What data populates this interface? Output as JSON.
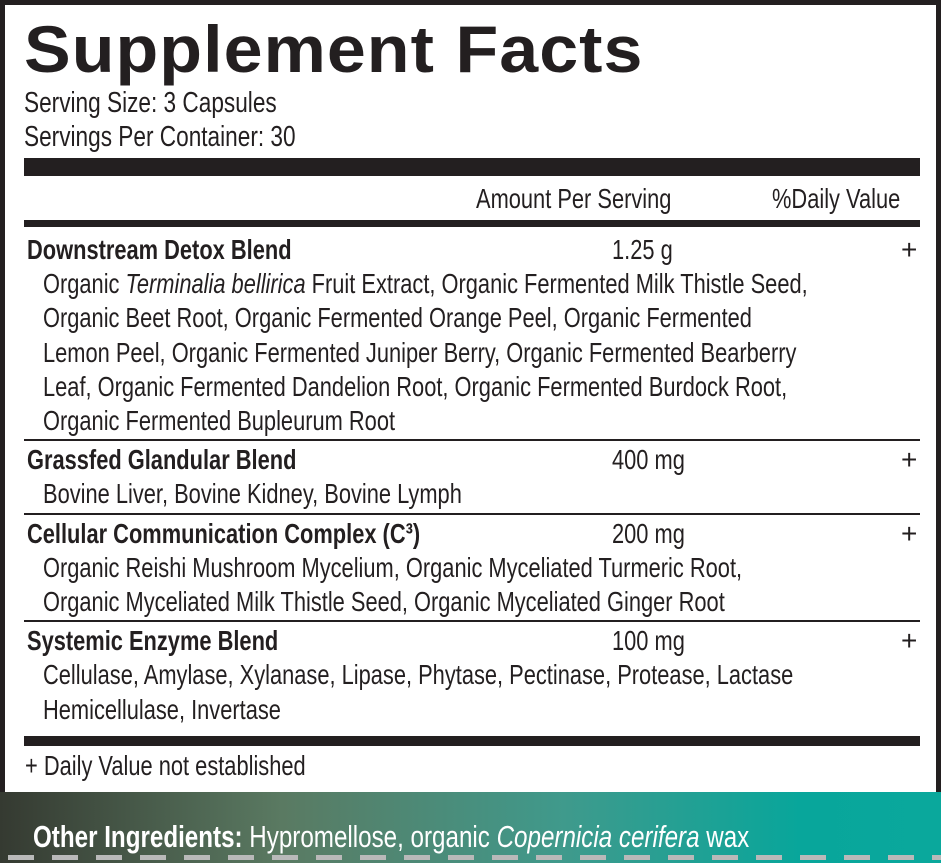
{
  "title": "Supplement Facts",
  "serving_size": "Serving Size: 3 Capsules",
  "servings_per_container": "Servings Per Container: 30",
  "header": {
    "amount": "Amount Per Serving",
    "dv": "%Daily Value"
  },
  "rows": [
    {
      "name": "Downstream Detox Blend",
      "amount": "1.25 g",
      "dv": "+",
      "lines": [
        [
          {
            "t": "Organic "
          },
          {
            "t": "Terminalia bellirica",
            "i": true
          },
          {
            "t": " Fruit Extract, Organic Fermented Milk Thistle Seed,"
          }
        ],
        [
          {
            "t": "Organic Beet Root, Organic Fermented Orange Peel, Organic Fermented"
          }
        ],
        [
          {
            "t": "Lemon Peel, Organic Fermented Juniper Berry, Organic Fermented Bearberry"
          }
        ],
        [
          {
            "t": "Leaf, Organic Fermented Dandelion Root, Organic Fermented Burdock Root,"
          }
        ],
        [
          {
            "t": "Organic Fermented Bupleurum Root"
          }
        ]
      ]
    },
    {
      "name": "Grassfed Glandular Blend",
      "amount": "400 mg",
      "dv": "+",
      "lines": [
        [
          {
            "t": "Bovine Liver, Bovine Kidney, Bovine Lymph"
          }
        ]
      ]
    },
    {
      "name": "Cellular Communication Complex (C³)",
      "amount": "200 mg",
      "dv": "+",
      "lines": [
        [
          {
            "t": "Organic Reishi Mushroom Mycelium, Organic Myceliated Turmeric Root,"
          }
        ],
        [
          {
            "t": "Organic Myceliated Milk Thistle Seed, Organic Myceliated Ginger Root"
          }
        ]
      ]
    },
    {
      "name": "Systemic Enzyme Blend",
      "amount": "100 mg",
      "dv": "+",
      "lines": [
        [
          {
            "t": "Cellulase, Amylase, Xylanase, Lipase, Phytase, Pectinase, Protease, Lactase"
          }
        ],
        [
          {
            "t": "Hemicellulase, Invertase"
          }
        ]
      ]
    }
  ],
  "footnote": "+ Daily Value not established",
  "other_ingredients": {
    "label": "Other Ingredients:",
    "text1": " Hypromellose, organic ",
    "italic": "Copernicia cerifera",
    "text2": " wax"
  },
  "colors": {
    "ink": "#231f20",
    "band_left": "#353a31",
    "band_right": "#0aa89c"
  }
}
